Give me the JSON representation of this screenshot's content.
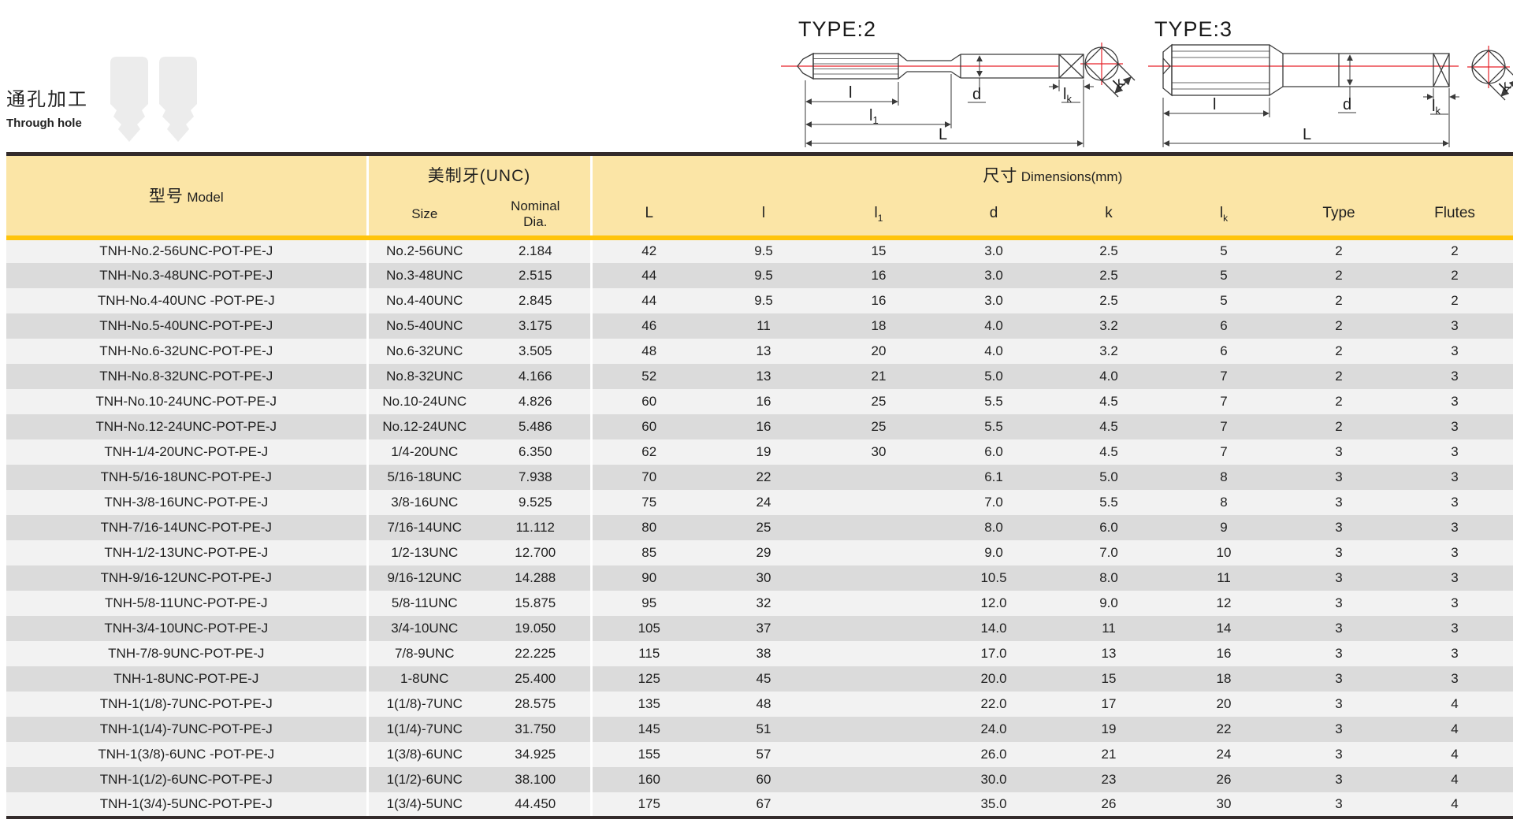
{
  "section": {
    "title_zh": "通孔加工",
    "title_en": "Through hole"
  },
  "diagrams": {
    "type2": {
      "title": "TYPE:2",
      "l": "l",
      "l1_base": "l",
      "l1_sub": "1",
      "L": "L",
      "d": "d",
      "k": "k",
      "lk_base": "l",
      "lk_sub": "k"
    },
    "type3": {
      "title": "TYPE:3",
      "l": "l",
      "L": "L",
      "d": "d",
      "k": "k",
      "lk_base": "l",
      "lk_sub": "k"
    }
  },
  "table": {
    "header": {
      "model_zh": "型号",
      "model_en": "Model",
      "unc_group": "美制牙(UNC)",
      "size": "Size",
      "nominal_line1": "Nominal",
      "nominal_line2": "Dia.",
      "dims_zh": "尺寸",
      "dims_en": "Dimensions(mm)",
      "dim_cols": [
        {
          "base": "L",
          "sub": ""
        },
        {
          "base": "l",
          "sub": ""
        },
        {
          "base": "l",
          "sub": "1"
        },
        {
          "base": "d",
          "sub": ""
        },
        {
          "base": "k",
          "sub": ""
        },
        {
          "base": "l",
          "sub": "k"
        },
        {
          "base": "Type",
          "sub": ""
        },
        {
          "base": "Flutes",
          "sub": ""
        }
      ]
    },
    "rows": [
      [
        "TNH-No.2-56UNC-POT-PE-J",
        "No.2-56UNC",
        "2.184",
        "42",
        "9.5",
        "15",
        "3.0",
        "2.5",
        "5",
        "2",
        "2"
      ],
      [
        "TNH-No.3-48UNC-POT-PE-J",
        "No.3-48UNC",
        "2.515",
        "44",
        "9.5",
        "16",
        "3.0",
        "2.5",
        "5",
        "2",
        "2"
      ],
      [
        "TNH-No.4-40UNC -POT-PE-J",
        "No.4-40UNC",
        "2.845",
        "44",
        "9.5",
        "16",
        "3.0",
        "2.5",
        "5",
        "2",
        "2"
      ],
      [
        "TNH-No.5-40UNC-POT-PE-J",
        "No.5-40UNC",
        "3.175",
        "46",
        "11",
        "18",
        "4.0",
        "3.2",
        "6",
        "2",
        "3"
      ],
      [
        "TNH-No.6-32UNC-POT-PE-J",
        "No.6-32UNC",
        "3.505",
        "48",
        "13",
        "20",
        "4.0",
        "3.2",
        "6",
        "2",
        "3"
      ],
      [
        "TNH-No.8-32UNC-POT-PE-J",
        "No.8-32UNC",
        "4.166",
        "52",
        "13",
        "21",
        "5.0",
        "4.0",
        "7",
        "2",
        "3"
      ],
      [
        "TNH-No.10-24UNC-POT-PE-J",
        "No.10-24UNC",
        "4.826",
        "60",
        "16",
        "25",
        "5.5",
        "4.5",
        "7",
        "2",
        "3"
      ],
      [
        "TNH-No.12-24UNC-POT-PE-J",
        "No.12-24UNC",
        "5.486",
        "60",
        "16",
        "25",
        "5.5",
        "4.5",
        "7",
        "2",
        "3"
      ],
      [
        "TNH-1/4-20UNC-POT-PE-J",
        "1/4-20UNC",
        "6.350",
        "62",
        "19",
        "30",
        "6.0",
        "4.5",
        "7",
        "3",
        "3"
      ],
      [
        "TNH-5/16-18UNC-POT-PE-J",
        "5/16-18UNC",
        "7.938",
        "70",
        "22",
        "",
        "6.1",
        "5.0",
        "8",
        "3",
        "3"
      ],
      [
        "TNH-3/8-16UNC-POT-PE-J",
        "3/8-16UNC",
        "9.525",
        "75",
        "24",
        "",
        "7.0",
        "5.5",
        "8",
        "3",
        "3"
      ],
      [
        "TNH-7/16-14UNC-POT-PE-J",
        "7/16-14UNC",
        "11.112",
        "80",
        "25",
        "",
        "8.0",
        "6.0",
        "9",
        "3",
        "3"
      ],
      [
        "TNH-1/2-13UNC-POT-PE-J",
        "1/2-13UNC",
        "12.700",
        "85",
        "29",
        "",
        "9.0",
        "7.0",
        "10",
        "3",
        "3"
      ],
      [
        "TNH-9/16-12UNC-POT-PE-J",
        "9/16-12UNC",
        "14.288",
        "90",
        "30",
        "",
        "10.5",
        "8.0",
        "11",
        "3",
        "3"
      ],
      [
        "TNH-5/8-11UNC-POT-PE-J",
        "5/8-11UNC",
        "15.875",
        "95",
        "32",
        "",
        "12.0",
        "9.0",
        "12",
        "3",
        "3"
      ],
      [
        "TNH-3/4-10UNC-POT-PE-J",
        "3/4-10UNC",
        "19.050",
        "105",
        "37",
        "",
        "14.0",
        "11",
        "14",
        "3",
        "3"
      ],
      [
        "TNH-7/8-9UNC-POT-PE-J",
        "7/8-9UNC",
        "22.225",
        "115",
        "38",
        "",
        "17.0",
        "13",
        "16",
        "3",
        "3"
      ],
      [
        "TNH-1-8UNC-POT-PE-J",
        "1-8UNC",
        "25.400",
        "125",
        "45",
        "",
        "20.0",
        "15",
        "18",
        "3",
        "3"
      ],
      [
        "TNH-1(1/8)-7UNC-POT-PE-J",
        "1(1/8)-7UNC",
        "28.575",
        "135",
        "48",
        "",
        "22.0",
        "17",
        "20",
        "3",
        "4"
      ],
      [
        "TNH-1(1/4)-7UNC-POT-PE-J",
        "1(1/4)-7UNC",
        "31.750",
        "145",
        "51",
        "",
        "24.0",
        "19",
        "22",
        "3",
        "4"
      ],
      [
        "TNH-1(3/8)-6UNC -POT-PE-J",
        "1(3/8)-6UNC",
        "34.925",
        "155",
        "57",
        "",
        "26.0",
        "21",
        "24",
        "3",
        "4"
      ],
      [
        "TNH-1(1/2)-6UNC-POT-PE-J",
        "1(1/2)-6UNC",
        "38.100",
        "160",
        "60",
        "",
        "30.0",
        "23",
        "26",
        "3",
        "4"
      ],
      [
        "TNH-1(3/4)-5UNC-POT-PE-J",
        "1(3/4)-5UNC",
        "44.450",
        "175",
        "67",
        "",
        "35.0",
        "26",
        "30",
        "3",
        "4"
      ]
    ]
  },
  "colors": {
    "header_bg": "#FBE5A6",
    "gold": "#FFC40A",
    "dark_border": "#332B2B",
    "row_light": "#F2F2F2",
    "row_dark": "#DBDBDB",
    "centerline_red": "#E62129"
  }
}
